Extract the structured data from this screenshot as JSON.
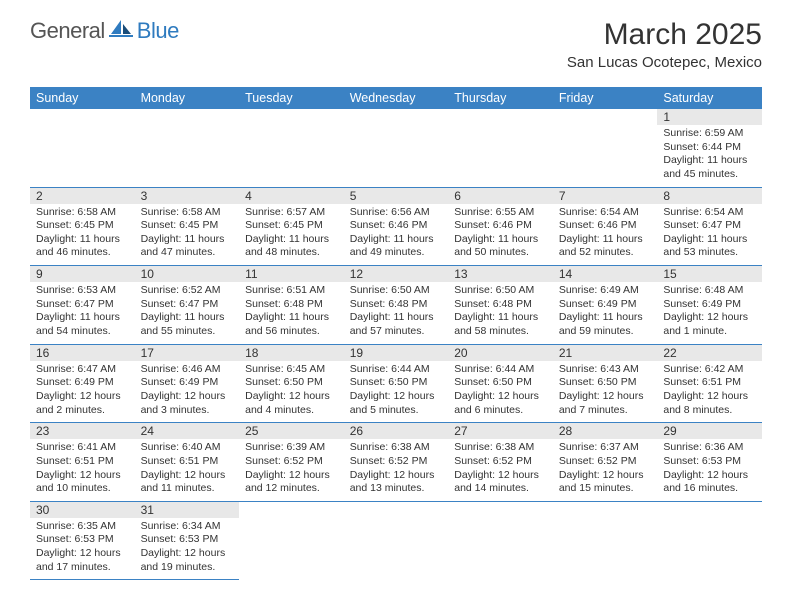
{
  "logo": {
    "general": "General",
    "blue": "Blue"
  },
  "header": {
    "month_title": "March 2025",
    "location": "San Lucas Ocotepec, Mexico"
  },
  "colors": {
    "header_bg": "#3b82c4",
    "header_text": "#ffffff",
    "border": "#3b82c4",
    "daynum_bg": "#e8e8e8",
    "text": "#333333",
    "logo_gray": "#555555",
    "logo_blue": "#2f7bbf"
  },
  "day_headers": [
    "Sunday",
    "Monday",
    "Tuesday",
    "Wednesday",
    "Thursday",
    "Friday",
    "Saturday"
  ],
  "weeks": [
    [
      null,
      null,
      null,
      null,
      null,
      null,
      {
        "n": "1",
        "sr": "6:59 AM",
        "ss": "6:44 PM",
        "dl": "11 hours and 45 minutes."
      }
    ],
    [
      {
        "n": "2",
        "sr": "6:58 AM",
        "ss": "6:45 PM",
        "dl": "11 hours and 46 minutes."
      },
      {
        "n": "3",
        "sr": "6:58 AM",
        "ss": "6:45 PM",
        "dl": "11 hours and 47 minutes."
      },
      {
        "n": "4",
        "sr": "6:57 AM",
        "ss": "6:45 PM",
        "dl": "11 hours and 48 minutes."
      },
      {
        "n": "5",
        "sr": "6:56 AM",
        "ss": "6:46 PM",
        "dl": "11 hours and 49 minutes."
      },
      {
        "n": "6",
        "sr": "6:55 AM",
        "ss": "6:46 PM",
        "dl": "11 hours and 50 minutes."
      },
      {
        "n": "7",
        "sr": "6:54 AM",
        "ss": "6:46 PM",
        "dl": "11 hours and 52 minutes."
      },
      {
        "n": "8",
        "sr": "6:54 AM",
        "ss": "6:47 PM",
        "dl": "11 hours and 53 minutes."
      }
    ],
    [
      {
        "n": "9",
        "sr": "6:53 AM",
        "ss": "6:47 PM",
        "dl": "11 hours and 54 minutes."
      },
      {
        "n": "10",
        "sr": "6:52 AM",
        "ss": "6:47 PM",
        "dl": "11 hours and 55 minutes."
      },
      {
        "n": "11",
        "sr": "6:51 AM",
        "ss": "6:48 PM",
        "dl": "11 hours and 56 minutes."
      },
      {
        "n": "12",
        "sr": "6:50 AM",
        "ss": "6:48 PM",
        "dl": "11 hours and 57 minutes."
      },
      {
        "n": "13",
        "sr": "6:50 AM",
        "ss": "6:48 PM",
        "dl": "11 hours and 58 minutes."
      },
      {
        "n": "14",
        "sr": "6:49 AM",
        "ss": "6:49 PM",
        "dl": "11 hours and 59 minutes."
      },
      {
        "n": "15",
        "sr": "6:48 AM",
        "ss": "6:49 PM",
        "dl": "12 hours and 1 minute."
      }
    ],
    [
      {
        "n": "16",
        "sr": "6:47 AM",
        "ss": "6:49 PM",
        "dl": "12 hours and 2 minutes."
      },
      {
        "n": "17",
        "sr": "6:46 AM",
        "ss": "6:49 PM",
        "dl": "12 hours and 3 minutes."
      },
      {
        "n": "18",
        "sr": "6:45 AM",
        "ss": "6:50 PM",
        "dl": "12 hours and 4 minutes."
      },
      {
        "n": "19",
        "sr": "6:44 AM",
        "ss": "6:50 PM",
        "dl": "12 hours and 5 minutes."
      },
      {
        "n": "20",
        "sr": "6:44 AM",
        "ss": "6:50 PM",
        "dl": "12 hours and 6 minutes."
      },
      {
        "n": "21",
        "sr": "6:43 AM",
        "ss": "6:50 PM",
        "dl": "12 hours and 7 minutes."
      },
      {
        "n": "22",
        "sr": "6:42 AM",
        "ss": "6:51 PM",
        "dl": "12 hours and 8 minutes."
      }
    ],
    [
      {
        "n": "23",
        "sr": "6:41 AM",
        "ss": "6:51 PM",
        "dl": "12 hours and 10 minutes."
      },
      {
        "n": "24",
        "sr": "6:40 AM",
        "ss": "6:51 PM",
        "dl": "12 hours and 11 minutes."
      },
      {
        "n": "25",
        "sr": "6:39 AM",
        "ss": "6:52 PM",
        "dl": "12 hours and 12 minutes."
      },
      {
        "n": "26",
        "sr": "6:38 AM",
        "ss": "6:52 PM",
        "dl": "12 hours and 13 minutes."
      },
      {
        "n": "27",
        "sr": "6:38 AM",
        "ss": "6:52 PM",
        "dl": "12 hours and 14 minutes."
      },
      {
        "n": "28",
        "sr": "6:37 AM",
        "ss": "6:52 PM",
        "dl": "12 hours and 15 minutes."
      },
      {
        "n": "29",
        "sr": "6:36 AM",
        "ss": "6:53 PM",
        "dl": "12 hours and 16 minutes."
      }
    ],
    [
      {
        "n": "30",
        "sr": "6:35 AM",
        "ss": "6:53 PM",
        "dl": "12 hours and 17 minutes."
      },
      {
        "n": "31",
        "sr": "6:34 AM",
        "ss": "6:53 PM",
        "dl": "12 hours and 19 minutes."
      },
      null,
      null,
      null,
      null,
      null
    ]
  ],
  "labels": {
    "sunrise": "Sunrise:",
    "sunset": "Sunset:",
    "daylight": "Daylight:"
  }
}
